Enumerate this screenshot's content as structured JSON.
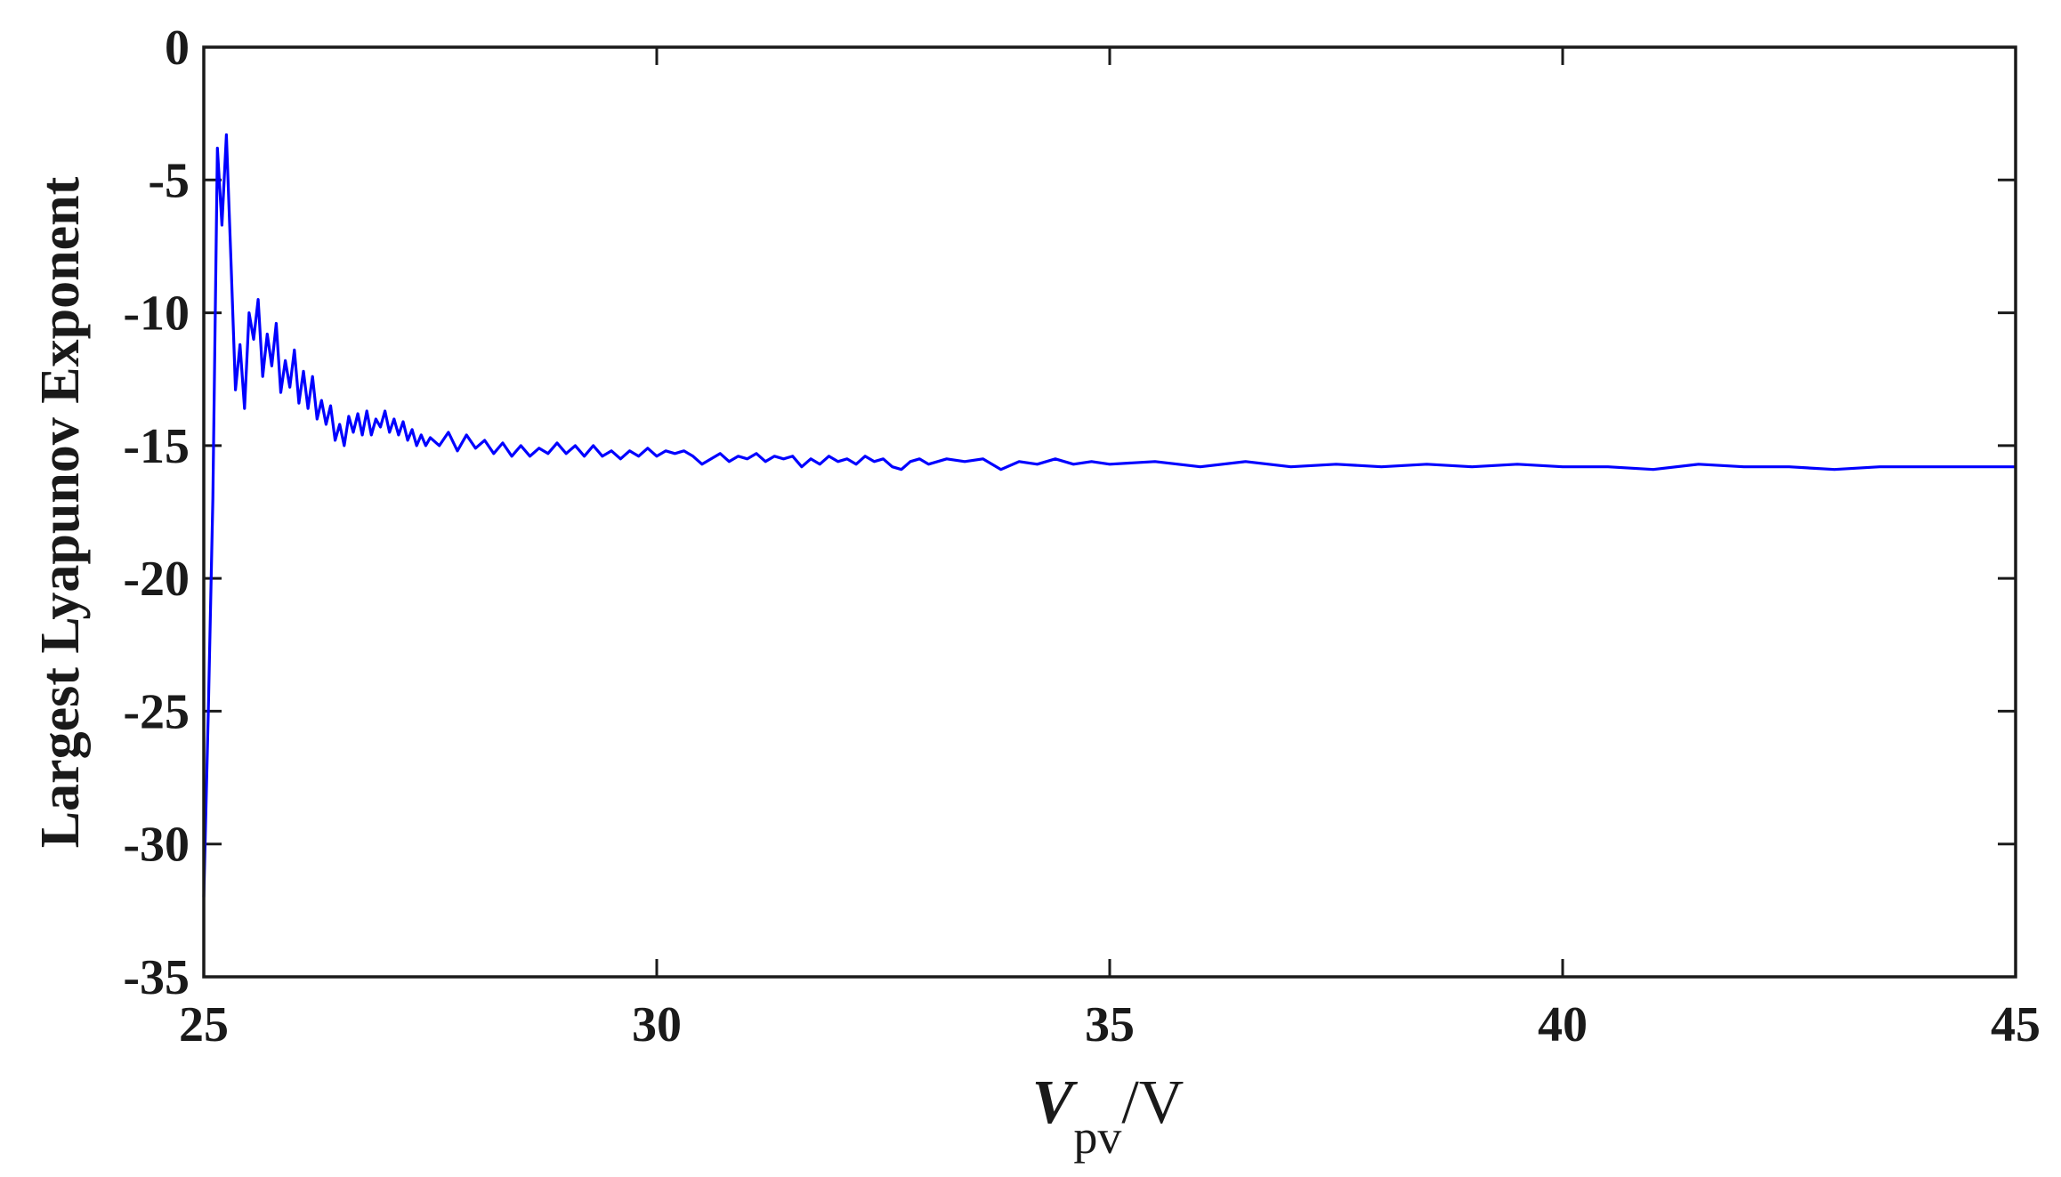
{
  "chart_data": {
    "type": "line",
    "title": "",
    "xlabel": {
      "var": "V",
      "sub": "pv",
      "unit": "/V"
    },
    "ylabel": "Largest Lyapunov Exponent",
    "xlim": [
      25,
      45
    ],
    "ylim": [
      -35,
      0
    ],
    "xticks": [
      25,
      30,
      35,
      40,
      45
    ],
    "yticks": [
      0,
      -5,
      -10,
      -15,
      -20,
      -25,
      -30,
      -35
    ],
    "xtick_labels": [
      "25",
      "30",
      "35",
      "40",
      "45"
    ],
    "ytick_labels": [
      "0",
      "-5",
      "-10",
      "-15",
      "-20",
      "-25",
      "-30",
      "-35"
    ],
    "grid": false,
    "legend": "none",
    "line_color": "#0000ff",
    "series": [
      {
        "x": [
          25.0,
          25.05,
          25.1,
          25.15,
          25.2,
          25.25,
          25.3,
          25.35,
          25.4,
          25.45,
          25.5,
          25.55,
          25.6,
          25.65,
          25.7,
          25.75,
          25.8,
          25.85,
          25.9,
          25.95,
          26.0,
          26.05,
          26.1,
          26.15,
          26.2,
          26.25,
          26.3,
          26.35,
          26.4,
          26.45,
          26.5,
          26.55,
          26.6,
          26.65,
          26.7,
          26.75,
          26.8,
          26.85,
          26.9,
          26.95,
          27.0,
          27.05,
          27.1,
          27.15,
          27.2,
          27.25,
          27.3,
          27.35,
          27.4,
          27.45,
          27.5,
          27.6,
          27.7,
          27.8,
          27.9,
          28.0,
          28.1,
          28.2,
          28.3,
          28.4,
          28.5,
          28.6,
          28.7,
          28.8,
          28.9,
          29.0,
          29.1,
          29.2,
          29.3,
          29.4,
          29.5,
          29.6,
          29.7,
          29.8,
          29.9,
          30.0,
          30.1,
          30.2,
          30.3,
          30.4,
          30.5,
          30.6,
          30.7,
          30.8,
          30.9,
          31.0,
          31.1,
          31.2,
          31.3,
          31.4,
          31.5,
          31.6,
          31.7,
          31.8,
          31.9,
          32.0,
          32.1,
          32.2,
          32.3,
          32.4,
          32.5,
          32.6,
          32.7,
          32.8,
          32.9,
          33.0,
          33.2,
          33.4,
          33.6,
          33.8,
          34.0,
          34.2,
          34.4,
          34.6,
          34.8,
          35.0,
          35.5,
          36.0,
          36.5,
          37.0,
          37.5,
          38.0,
          38.5,
          39.0,
          39.5,
          40.0,
          40.5,
          41.0,
          41.5,
          42.0,
          42.5,
          43.0,
          43.5,
          44.0,
          44.5,
          45.0
        ],
        "y": [
          -32.0,
          -25.0,
          -17.0,
          -3.8,
          -6.7,
          -3.3,
          -8.0,
          -12.9,
          -11.2,
          -13.6,
          -10.0,
          -11.0,
          -9.5,
          -12.4,
          -10.8,
          -12.0,
          -10.4,
          -13.0,
          -11.8,
          -12.8,
          -11.4,
          -13.4,
          -12.2,
          -13.6,
          -12.4,
          -14.0,
          -13.3,
          -14.2,
          -13.5,
          -14.8,
          -14.2,
          -15.0,
          -13.9,
          -14.5,
          -13.8,
          -14.6,
          -13.7,
          -14.6,
          -14.0,
          -14.3,
          -13.7,
          -14.5,
          -14.0,
          -14.6,
          -14.1,
          -14.8,
          -14.4,
          -15.0,
          -14.6,
          -15.0,
          -14.7,
          -15.0,
          -14.5,
          -15.2,
          -14.6,
          -15.1,
          -14.8,
          -15.3,
          -14.9,
          -15.4,
          -15.0,
          -15.4,
          -15.1,
          -15.3,
          -14.9,
          -15.3,
          -15.0,
          -15.4,
          -15.0,
          -15.4,
          -15.2,
          -15.5,
          -15.2,
          -15.4,
          -15.1,
          -15.4,
          -15.2,
          -15.3,
          -15.2,
          -15.4,
          -15.7,
          -15.5,
          -15.3,
          -15.6,
          -15.4,
          -15.5,
          -15.3,
          -15.6,
          -15.4,
          -15.5,
          -15.4,
          -15.8,
          -15.5,
          -15.7,
          -15.4,
          -15.6,
          -15.5,
          -15.7,
          -15.4,
          -15.6,
          -15.5,
          -15.8,
          -15.9,
          -15.6,
          -15.5,
          -15.7,
          -15.5,
          -15.6,
          -15.5,
          -15.9,
          -15.6,
          -15.7,
          -15.5,
          -15.7,
          -15.6,
          -15.7,
          -15.6,
          -15.8,
          -15.6,
          -15.8,
          -15.7,
          -15.8,
          -15.7,
          -15.8,
          -15.7,
          -15.8,
          -15.8,
          -15.9,
          -15.7,
          -15.8,
          -15.8,
          -15.9,
          -15.8,
          -15.8,
          -15.8,
          -15.8
        ]
      }
    ]
  }
}
